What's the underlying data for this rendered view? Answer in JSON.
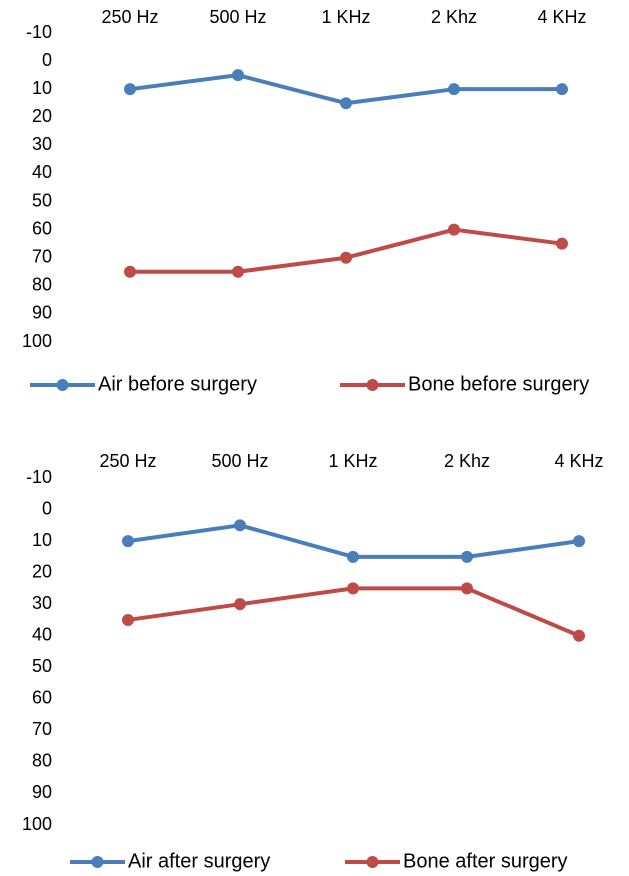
{
  "chart_data": [
    {
      "type": "line",
      "categories": [
        "250 Hz",
        "500 Hz",
        "1 KHz",
        "2 Khz",
        "4 KHz"
      ],
      "series": [
        {
          "name": "Air before surgery",
          "color": "#4a7ebb",
          "values": [
            10,
            5,
            15,
            10,
            10
          ]
        },
        {
          "name": "Bone before surgery",
          "color": "#be4b48",
          "values": [
            75,
            75,
            70,
            60,
            65
          ]
        }
      ],
      "ylim": [
        -10,
        100
      ],
      "y_inverted": true,
      "yticks": [
        -10,
        0,
        10,
        20,
        30,
        40,
        50,
        60,
        70,
        80,
        90,
        100
      ],
      "grid": false,
      "legend": "bottom"
    },
    {
      "type": "line",
      "categories": [
        "250 Hz",
        "500 Hz",
        "1 KHz",
        "2 Khz",
        "4 KHz"
      ],
      "series": [
        {
          "name": "Air after surgery",
          "color": "#4a7ebb",
          "values": [
            10,
            5,
            15,
            15,
            10
          ]
        },
        {
          "name": "Bone after surgery",
          "color": "#be4b48",
          "values": [
            35,
            30,
            25,
            25,
            40
          ]
        }
      ],
      "ylim": [
        -10,
        100
      ],
      "y_inverted": true,
      "yticks": [
        -10,
        0,
        10,
        20,
        30,
        40,
        50,
        60,
        70,
        80,
        90,
        100
      ],
      "grid": false,
      "legend": "bottom"
    }
  ]
}
